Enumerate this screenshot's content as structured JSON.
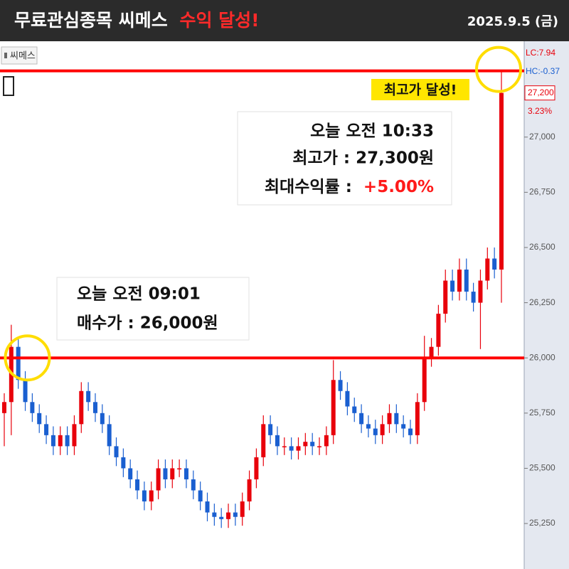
{
  "header": {
    "title": "무료관심종목 씨메스",
    "highlight": "수익 달성!",
    "date": "2025.9.5 (금)"
  },
  "chart_data": {
    "type": "candlestick",
    "stock": "씨메스",
    "ylim": [
      25044,
      27434
    ],
    "yticks": [
      {
        "value": 25250,
        "label": "25,250"
      },
      {
        "value": 25500,
        "label": "25,500"
      },
      {
        "value": 25750,
        "label": "25,750"
      },
      {
        "value": 26000,
        "label": "26,000"
      },
      {
        "value": 26250,
        "label": "26,250"
      },
      {
        "value": 26500,
        "label": "26,500"
      },
      {
        "value": 26750,
        "label": "26,750"
      },
      {
        "value": 27000,
        "label": "27,000"
      }
    ],
    "up_color": "#e8000b",
    "down_color": "#1a5fd0",
    "level_color": "#ff0000",
    "levels": [
      26000,
      27300
    ],
    "open": [
      25750,
      25800,
      26050,
      25900,
      25800,
      25750,
      25700,
      25650,
      25600,
      25650,
      25600,
      25700,
      25850,
      25800,
      25750,
      25700,
      25600,
      25550,
      25500,
      25450,
      25400,
      25350,
      25400,
      25500,
      25450,
      25500,
      25500,
      25450,
      25400,
      25350,
      25300,
      25280,
      25270,
      25300,
      25280,
      25350,
      25450,
      25550,
      25700,
      25650,
      25600,
      25600,
      25580,
      25600,
      25620,
      25600,
      25600,
      25650,
      25900,
      25850,
      25780,
      25750,
      25700,
      25680,
      25650,
      25700,
      25750,
      25700,
      25680,
      25650,
      25800,
      26000,
      26050,
      26200,
      26350,
      26300,
      26400,
      26300,
      26250,
      26350,
      26450,
      26400
    ],
    "high": [
      25840,
      26150,
      26090,
      25940,
      25840,
      25790,
      25740,
      25690,
      25690,
      25690,
      25740,
      25890,
      25890,
      25840,
      25790,
      25740,
      25640,
      25590,
      25540,
      25490,
      25440,
      25440,
      25540,
      25540,
      25540,
      25540,
      25540,
      25490,
      25440,
      25390,
      25340,
      25320,
      25340,
      25340,
      25390,
      25490,
      25590,
      25740,
      25740,
      25690,
      25640,
      25640,
      25640,
      25660,
      25660,
      25640,
      25690,
      25990,
      25940,
      25890,
      25820,
      25790,
      25740,
      25720,
      25740,
      25790,
      25790,
      25740,
      25720,
      25840,
      26100,
      26090,
      26240,
      26400,
      26400,
      26450,
      26450,
      26340,
      26400,
      26500,
      26500,
      27300
    ],
    "low": [
      25600,
      25650,
      25860,
      25760,
      25710,
      25660,
      25610,
      25560,
      25560,
      25560,
      25560,
      25660,
      25760,
      25710,
      25660,
      25560,
      25510,
      25460,
      25410,
      25360,
      25310,
      25310,
      25360,
      25410,
      25410,
      25460,
      25410,
      25360,
      25310,
      25260,
      25240,
      25230,
      25230,
      25240,
      25240,
      25310,
      25410,
      25510,
      25610,
      25560,
      25560,
      25540,
      25540,
      25560,
      25560,
      25560,
      25560,
      25610,
      25810,
      25740,
      25710,
      25660,
      25640,
      25610,
      25610,
      25660,
      25660,
      25640,
      25610,
      25610,
      25760,
      25960,
      26010,
      26160,
      26260,
      26260,
      26260,
      26210,
      26040,
      26310,
      26360,
      26250
    ],
    "close": [
      25800,
      26050,
      25900,
      25800,
      25750,
      25700,
      25650,
      25600,
      25650,
      25600,
      25700,
      25850,
      25800,
      25750,
      25700,
      25600,
      25550,
      25500,
      25450,
      25400,
      25350,
      25400,
      25500,
      25450,
      25500,
      25500,
      25450,
      25400,
      25350,
      25300,
      25280,
      25270,
      25300,
      25280,
      25350,
      25450,
      25550,
      25700,
      25650,
      25600,
      25600,
      25580,
      25600,
      25620,
      25600,
      25600,
      25650,
      25900,
      25850,
      25780,
      25750,
      25700,
      25680,
      25650,
      25700,
      25750,
      25700,
      25680,
      25650,
      25800,
      26000,
      26050,
      26200,
      26350,
      26300,
      26400,
      26300,
      26250,
      26350,
      26450,
      26400,
      27200
    ],
    "axis_info": {
      "lc": "LC:7.94",
      "hc": "HC:-0.37",
      "price": {
        "value": 27200,
        "label": "27,200"
      },
      "change": "3.23%"
    },
    "annotations": {
      "high_badge": "최고가 달성!",
      "high_box": {
        "time": "오늘 오전 10:33",
        "high": "최고가 : 27,300원",
        "return_label": "최대수익률 :",
        "return_value": "+5.00%"
      },
      "buy_box": {
        "time": "오늘 오전 09:01",
        "buy": "매수가 : 26,000원"
      }
    }
  }
}
